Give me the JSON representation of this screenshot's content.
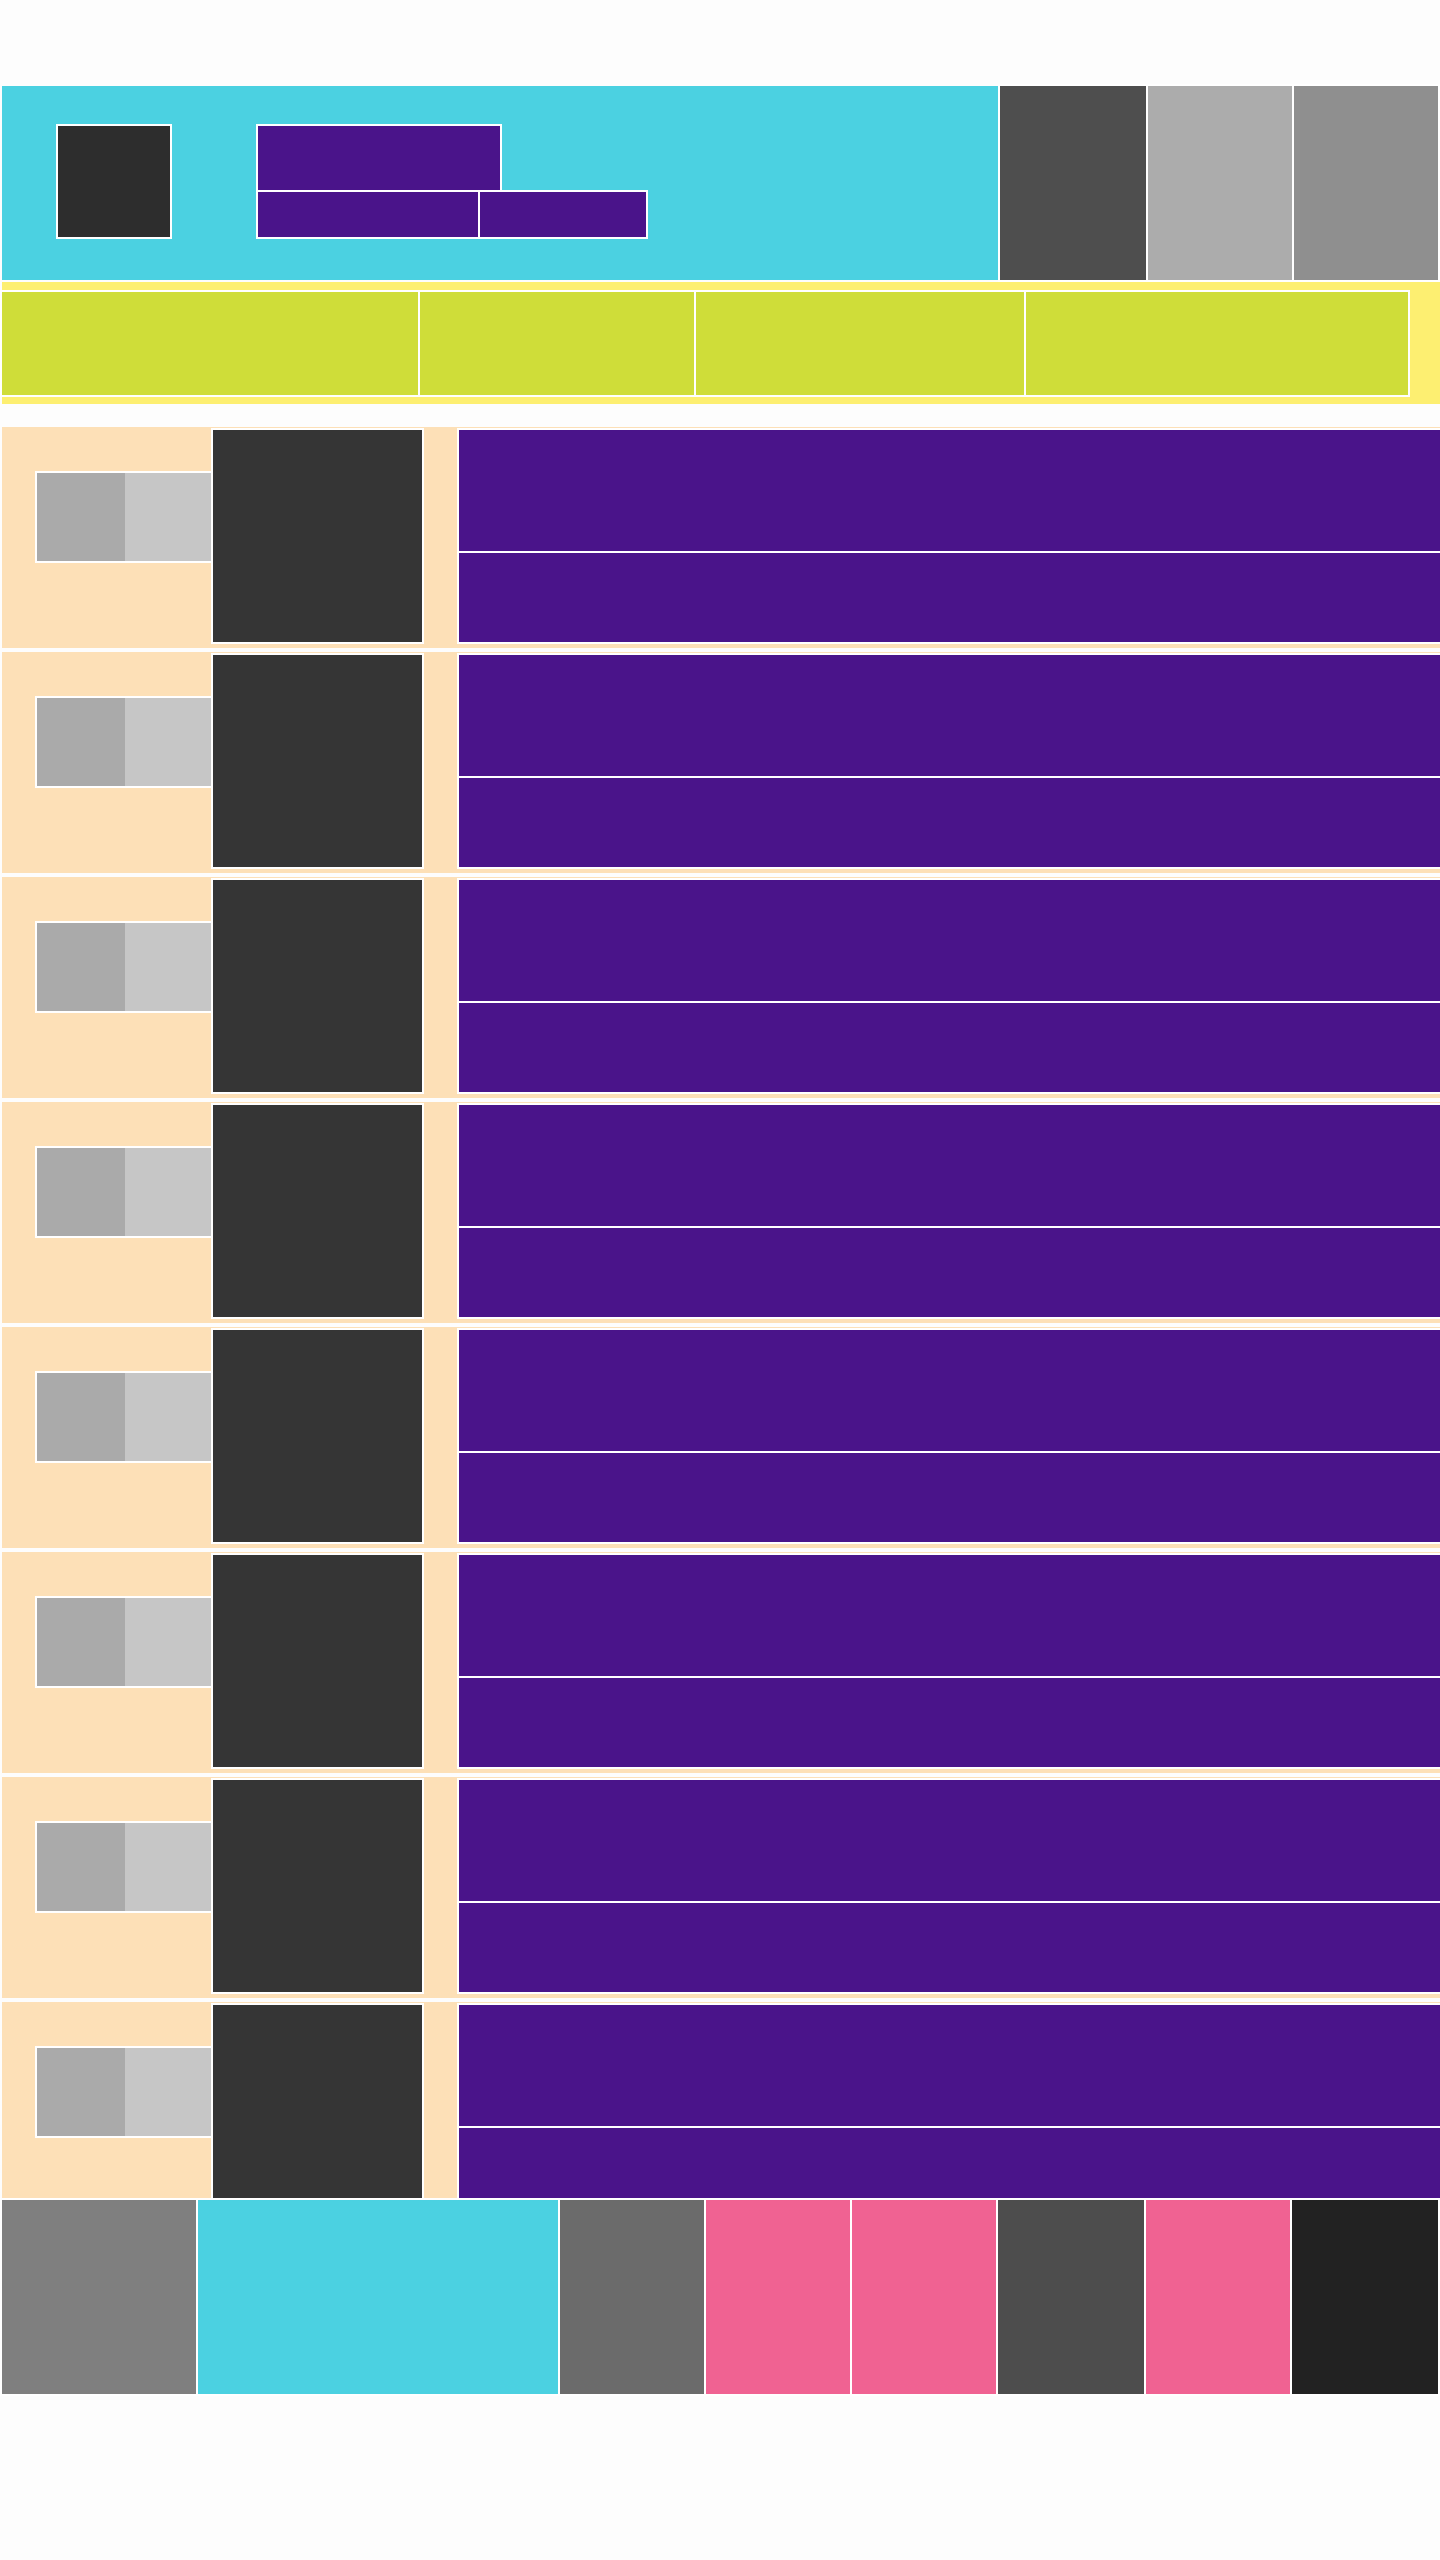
{
  "colors": {
    "header_bg": "#4bd1e1",
    "nav_bg": "#cfdd39",
    "nav_edge": "#fdef71",
    "row_bg": "#fde0b7",
    "text_block": "#4a148a",
    "dark": "#353535",
    "thumb_a": "#aaaaaa",
    "thumb_b": "#c6c6c6",
    "pink": "#f06292"
  },
  "header": {
    "logo_icon": "logo-icon",
    "actions": [
      {
        "icon": "action-icon",
        "color": "#4e4e4e"
      },
      {
        "icon": "action-icon",
        "color": "#acacac"
      },
      {
        "icon": "action-icon",
        "color": "#8f8f8f"
      }
    ]
  },
  "nav": {
    "tab_count": 4
  },
  "list": {
    "item_count": 8
  },
  "footer": {
    "tabs": [
      {
        "icon": "tab-icon",
        "color": "#7f7f7f"
      },
      {
        "icon": "tab-icon",
        "color": "#4bd1e1"
      },
      {
        "icon": "tab-icon",
        "color": "#6b6b6b"
      },
      {
        "icon": "tab-icon",
        "color": "#f06292"
      },
      {
        "icon": "tab-icon",
        "color": "#f06292"
      },
      {
        "icon": "tab-icon",
        "color": "#4d4d4d"
      },
      {
        "icon": "tab-icon",
        "color": "#f06292"
      },
      {
        "icon": "tab-icon",
        "color": "#222222"
      }
    ]
  }
}
